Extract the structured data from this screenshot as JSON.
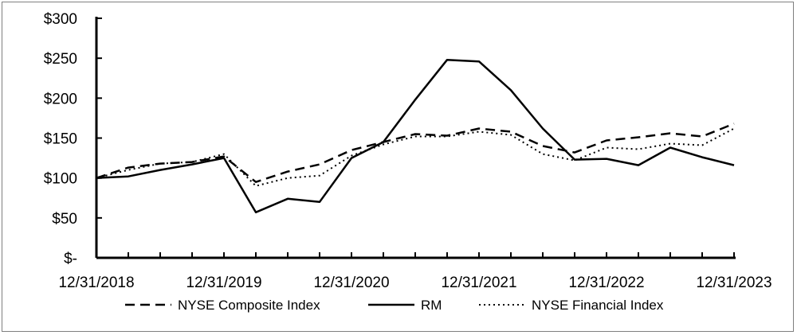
{
  "chart_data": {
    "type": "line",
    "title": "",
    "xlabel": "",
    "ylabel": "",
    "ylim": [
      0,
      300
    ],
    "y_ticks": [
      0,
      50,
      100,
      150,
      200,
      250,
      300
    ],
    "y_tick_labels": [
      "$-",
      "$50",
      "$100",
      "$150",
      "$200",
      "$250",
      "$300"
    ],
    "x_tick_labels": [
      "12/31/2018",
      "12/31/2019",
      "12/31/2020",
      "12/31/2021",
      "12/31/2022",
      "12/31/2023"
    ],
    "x_points_per_label": 4,
    "grid": false,
    "legend_position": "bottom",
    "series": [
      {
        "name": "NYSE Composite Index",
        "style": "dashed",
        "color": "#000000",
        "values": [
          100,
          113,
          118,
          120,
          127,
          95,
          108,
          117,
          135,
          145,
          155,
          153,
          162,
          158,
          140,
          132,
          147,
          151,
          156,
          152,
          168
        ]
      },
      {
        "name": "RM",
        "style": "solid",
        "color": "#000000",
        "values": [
          100,
          102,
          110,
          117,
          125,
          57,
          74,
          70,
          125,
          145,
          198,
          248,
          246,
          210,
          162,
          123,
          124,
          116,
          138,
          126,
          116
        ]
      },
      {
        "name": "NYSE Financial Index",
        "style": "dotted",
        "color": "#000000",
        "values": [
          100,
          110,
          118,
          120,
          130,
          90,
          100,
          103,
          128,
          142,
          152,
          152,
          158,
          154,
          130,
          122,
          138,
          136,
          143,
          141,
          162
        ]
      }
    ]
  }
}
